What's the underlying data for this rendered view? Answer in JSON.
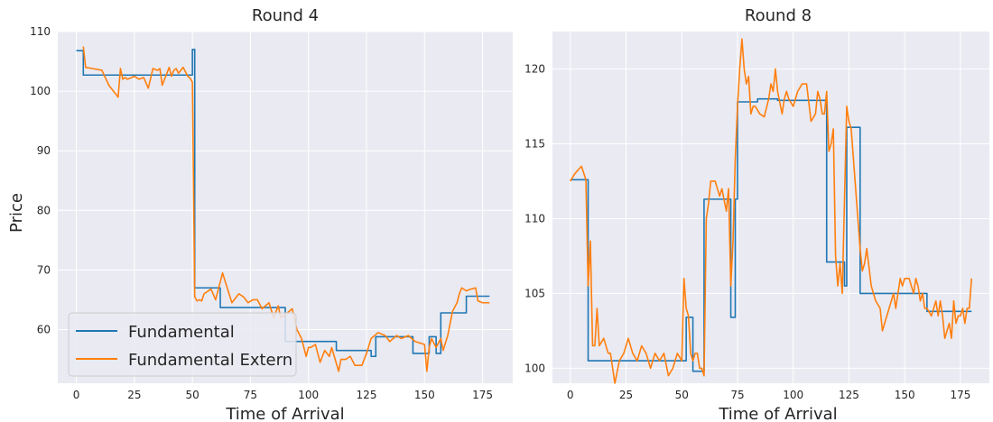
{
  "colors": {
    "background": "#eaeaf2",
    "grid": "#ffffff",
    "fundamental": "#1f77b4",
    "extern": "#ff7f0e"
  },
  "ylabel": "Price",
  "xlabel": "Time of Arrival",
  "legend": {
    "entries": [
      "Fundamental",
      "Fundamental Extern"
    ],
    "placement": "lower-left of first panel"
  },
  "chart_data": [
    {
      "type": "line",
      "title": "Round 4",
      "xlabel": "Time of Arrival",
      "ylabel": "Price",
      "xlim": [
        -8,
        188
      ],
      "ylim": [
        51,
        110
      ],
      "xticks": [
        0,
        25,
        50,
        75,
        100,
        125,
        150,
        175
      ],
      "yticks": [
        60,
        70,
        80,
        90,
        100,
        110
      ],
      "grid": true,
      "series": [
        {
          "name": "Fundamental",
          "step": true,
          "x": [
            0,
            3,
            49,
            50,
            51,
            58,
            62,
            88,
            90,
            110,
            112,
            127,
            129,
            143,
            145,
            152,
            155,
            157,
            168,
            178
          ],
          "y": [
            106.8,
            102.7,
            102.7,
            107.0,
            67.0,
            67.0,
            63.7,
            63.7,
            58.0,
            58.0,
            56.5,
            55.5,
            58.8,
            58.8,
            56.0,
            58.8,
            56.0,
            62.8,
            65.6,
            65.6
          ]
        },
        {
          "name": "Fundamental Extern",
          "x": [
            3,
            4,
            7,
            11,
            14,
            18,
            19,
            20,
            21,
            22,
            25,
            27,
            29,
            31,
            33,
            35,
            36,
            37,
            40,
            41,
            42,
            43,
            44,
            46,
            48,
            49,
            50,
            51,
            52,
            53,
            54,
            55,
            58,
            60,
            63,
            65,
            67,
            70,
            72,
            74,
            76,
            78,
            80,
            83,
            85,
            87,
            88,
            90,
            93,
            95,
            97,
            99,
            100,
            101,
            103,
            105,
            107,
            109,
            110,
            113,
            114,
            116,
            118,
            120,
            123,
            125,
            127,
            130,
            133,
            135,
            138,
            140,
            143,
            146,
            150,
            151,
            152,
            153,
            155,
            157,
            158,
            160,
            162,
            164,
            165,
            166,
            168,
            170,
            172,
            173,
            175,
            178
          ],
          "y": [
            107.5,
            104.0,
            103.8,
            103.5,
            101.0,
            99.0,
            103.8,
            102.0,
            102.3,
            102.0,
            102.5,
            102.0,
            102.3,
            100.5,
            103.8,
            103.5,
            103.8,
            101.0,
            104.0,
            102.5,
            103.5,
            103.8,
            103.0,
            104.0,
            102.5,
            102.2,
            101.5,
            65.5,
            64.8,
            65.0,
            64.8,
            66.0,
            66.8,
            65.0,
            69.5,
            67.0,
            64.5,
            66.0,
            65.5,
            64.5,
            65.0,
            65.0,
            63.5,
            64.5,
            62.0,
            64.0,
            62.0,
            62.5,
            63.5,
            60.0,
            58.5,
            55.5,
            57.0,
            57.0,
            57.5,
            54.5,
            56.5,
            55.5,
            57.0,
            53.0,
            55.0,
            55.0,
            55.5,
            54.0,
            54.0,
            56.0,
            58.5,
            59.5,
            59.0,
            58.0,
            59.0,
            58.5,
            59.0,
            58.0,
            57.5,
            53.0,
            57.0,
            58.5,
            57.0,
            58.5,
            56.5,
            59.0,
            63.0,
            64.5,
            66.0,
            67.0,
            66.5,
            66.8,
            67.0,
            64.8,
            64.5,
            64.5
          ]
        }
      ]
    },
    {
      "type": "line",
      "title": "Round 8",
      "xlabel": "Time of Arrival",
      "ylabel": "",
      "xlim": [
        -8,
        188
      ],
      "ylim": [
        99,
        122.5
      ],
      "xticks": [
        0,
        25,
        50,
        75,
        100,
        125,
        150,
        175
      ],
      "yticks": [
        100,
        105,
        110,
        115,
        120
      ],
      "grid": true,
      "series": [
        {
          "name": "Fundamental",
          "step": true,
          "x": [
            0,
            7,
            8,
            52,
            55,
            57,
            60,
            61,
            72,
            74,
            75,
            78,
            84,
            93,
            114,
            115,
            122,
            123,
            124,
            129,
            130,
            159,
            160,
            180
          ],
          "y": [
            112.6,
            112.6,
            100.5,
            103.4,
            99.8,
            99.8,
            111.3,
            111.3,
            103.4,
            111.3,
            117.8,
            117.8,
            118.0,
            117.9,
            117.9,
            107.1,
            107.1,
            105.5,
            116.1,
            116.1,
            105.0,
            105.0,
            103.8,
            103.8
          ]
        },
        {
          "name": "Fundamental Extern",
          "x": [
            0,
            2,
            5,
            7,
            8,
            9,
            10,
            11,
            12,
            13,
            15,
            17,
            18,
            20,
            22,
            24,
            26,
            28,
            30,
            32,
            34,
            36,
            38,
            40,
            42,
            44,
            46,
            48,
            50,
            51,
            52,
            53,
            54,
            55,
            56,
            57,
            58,
            59,
            60,
            61,
            62,
            63,
            65,
            67,
            68,
            70,
            71,
            72,
            73,
            74,
            75,
            76,
            77,
            78,
            79,
            80,
            81,
            82,
            83,
            85,
            87,
            89,
            90,
            91,
            92,
            93,
            95,
            96,
            97,
            98,
            100,
            102,
            104,
            106,
            108,
            110,
            111,
            112,
            113,
            114,
            115,
            116,
            117,
            118,
            119,
            120,
            121,
            122,
            124,
            125,
            126,
            127,
            128,
            129,
            130,
            131,
            132,
            133,
            135,
            137,
            139,
            140,
            141,
            143,
            145,
            146,
            147,
            148,
            149,
            150,
            152,
            154,
            155,
            156,
            157,
            158,
            159,
            160,
            162,
            164,
            165,
            166,
            167,
            168,
            169,
            170,
            171,
            172,
            173,
            174,
            175,
            176,
            177,
            178,
            179,
            180
          ],
          "y": [
            112.5,
            113.0,
            113.5,
            112.6,
            105.5,
            108.5,
            101.5,
            101.5,
            104.0,
            101.5,
            102.0,
            101.0,
            101.0,
            99.0,
            100.5,
            101.0,
            102.0,
            101.0,
            100.5,
            101.5,
            101.0,
            100.0,
            101.0,
            100.5,
            101.0,
            99.5,
            100.0,
            101.0,
            100.5,
            106.0,
            104.0,
            103.5,
            101.0,
            100.5,
            101.0,
            101.0,
            100.0,
            100.0,
            99.5,
            110.0,
            111.0,
            112.5,
            112.5,
            111.5,
            112.0,
            110.5,
            112.0,
            105.5,
            108.5,
            114.0,
            117.5,
            120.0,
            122.0,
            120.0,
            119.0,
            119.5,
            117.0,
            117.5,
            117.5,
            117.0,
            116.8,
            118.0,
            119.0,
            118.5,
            120.0,
            118.5,
            117.0,
            118.0,
            118.5,
            118.0,
            117.5,
            118.5,
            119.0,
            119.0,
            116.5,
            117.0,
            118.5,
            118.0,
            117.0,
            117.0,
            118.5,
            114.5,
            115.0,
            116.0,
            107.5,
            105.5,
            107.0,
            105.0,
            117.5,
            116.5,
            116.0,
            114.0,
            112.0,
            110.0,
            108.0,
            106.5,
            107.0,
            108.0,
            105.5,
            104.5,
            104.0,
            102.5,
            103.0,
            104.0,
            105.0,
            104.0,
            105.0,
            106.0,
            105.5,
            106.0,
            106.0,
            105.0,
            106.0,
            105.5,
            104.5,
            105.0,
            104.0,
            104.0,
            103.5,
            104.5,
            103.5,
            104.5,
            103.5,
            102.0,
            102.5,
            103.0,
            102.0,
            104.5,
            103.0,
            103.5,
            103.5,
            104.0,
            103.0,
            104.0,
            104.0,
            106.0
          ]
        }
      ]
    }
  ]
}
